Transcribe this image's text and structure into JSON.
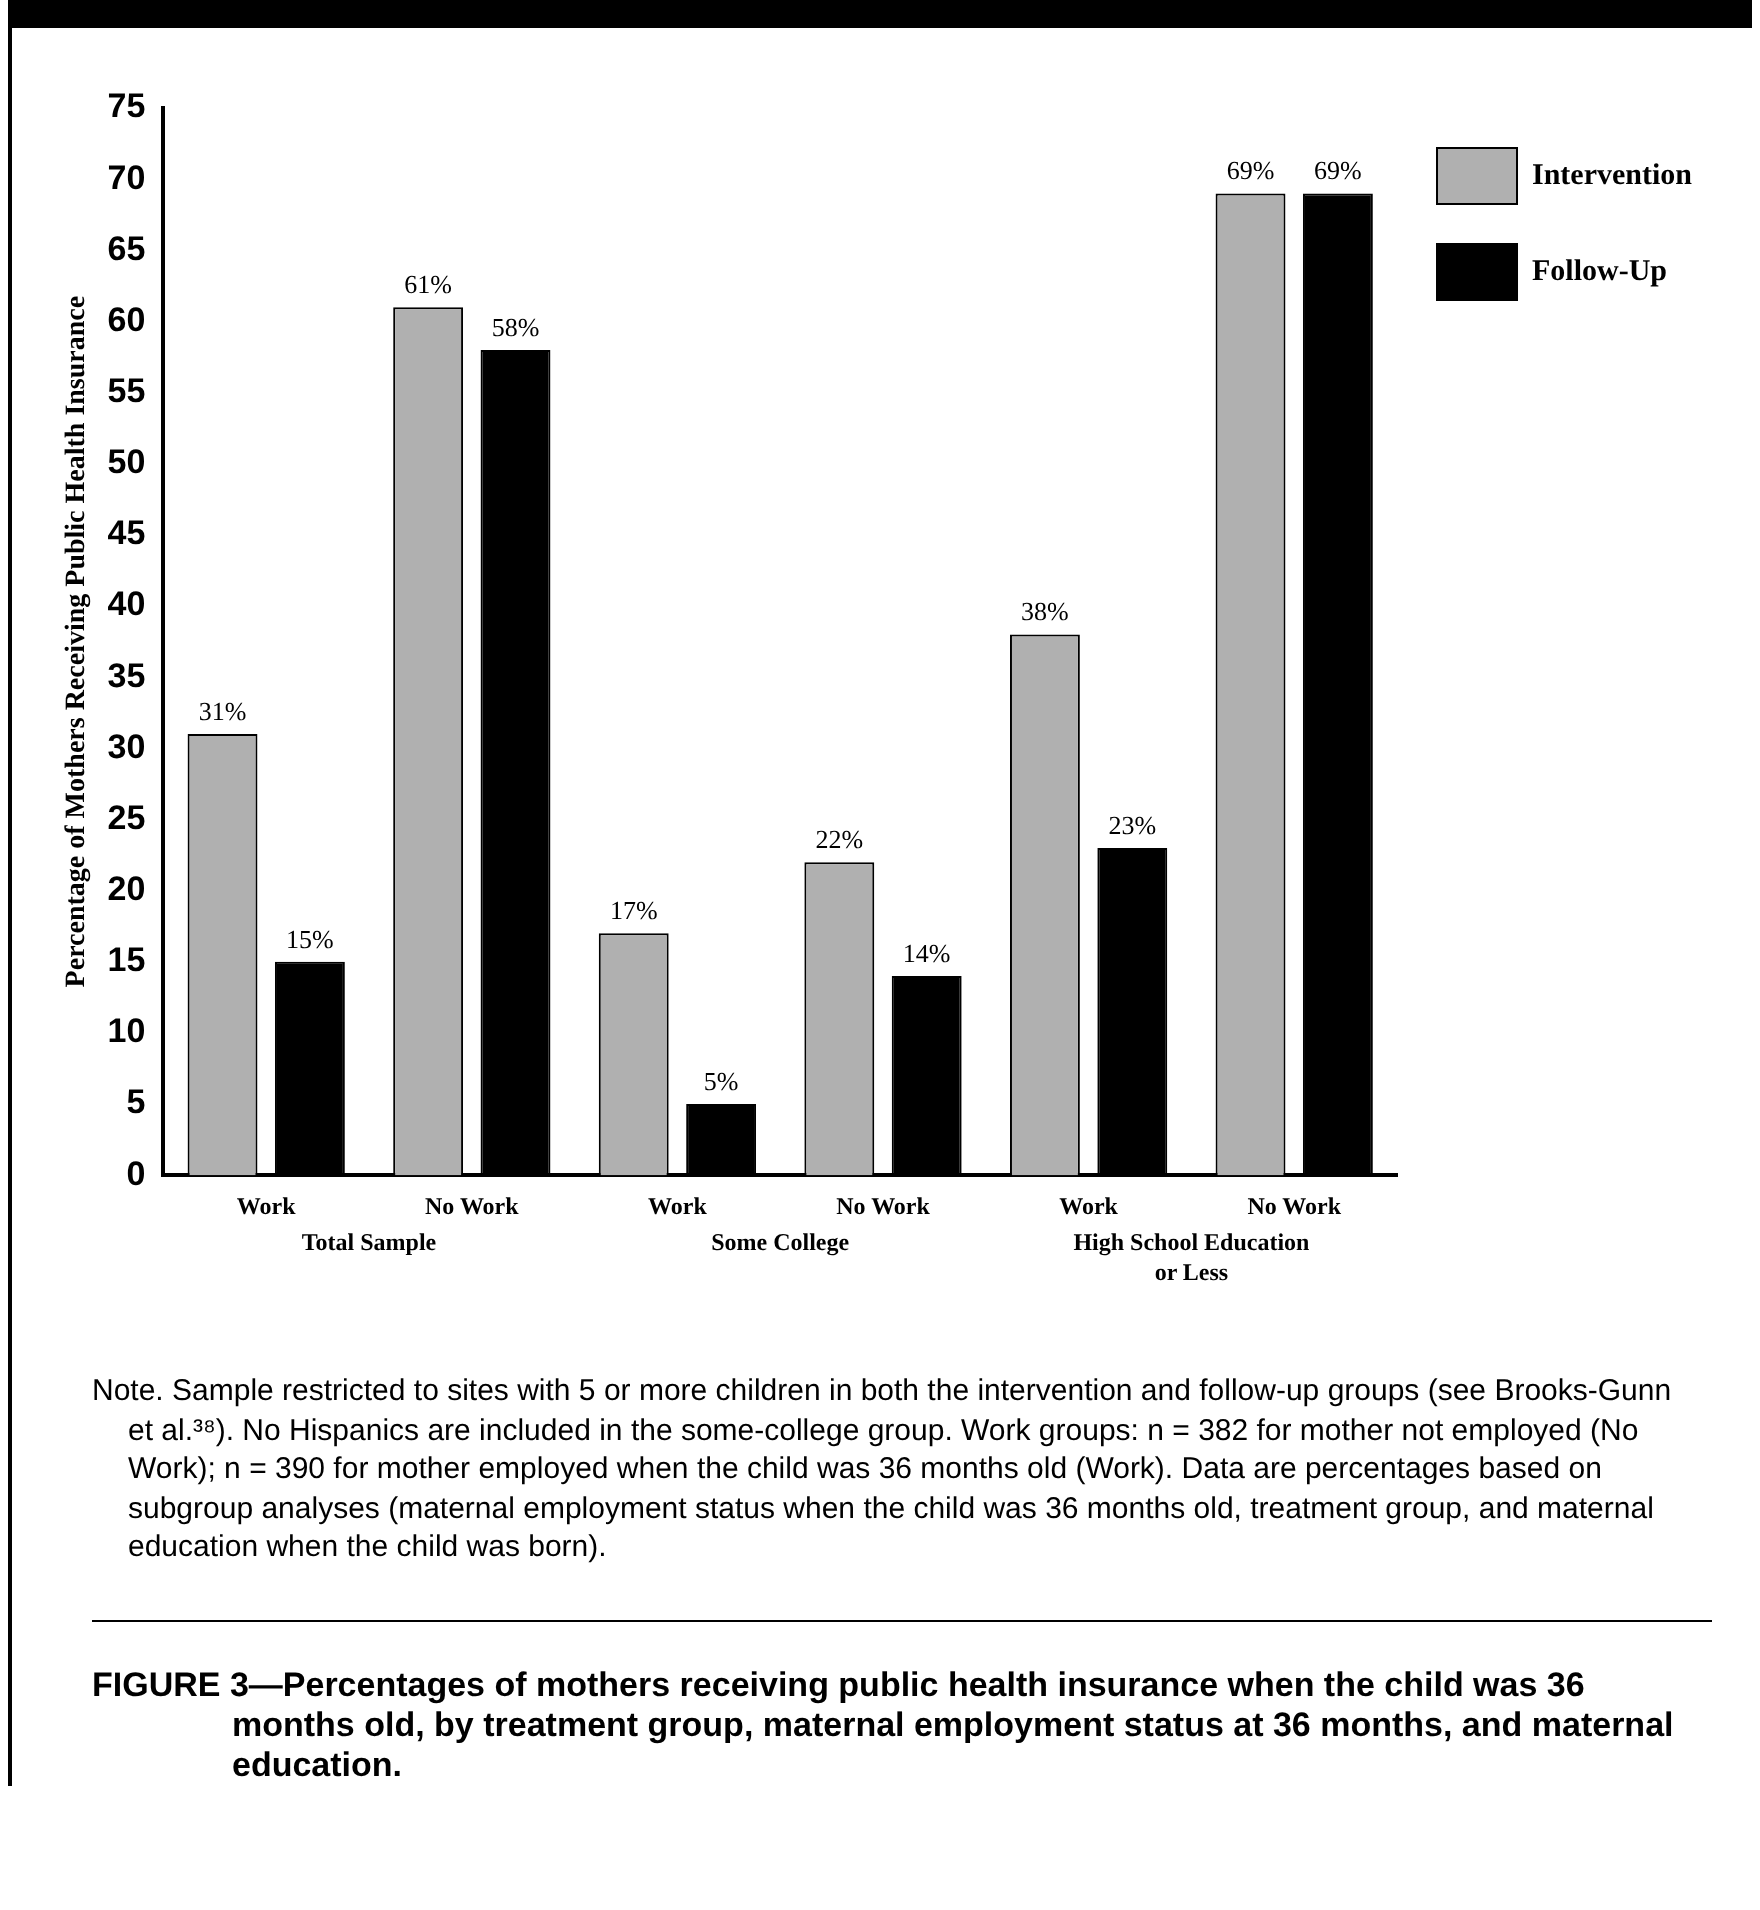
{
  "chart_data": {
    "type": "bar",
    "title": "FIGURE 3—Percentages of mothers receiving public health insurance when the child was 36 months old, by treatment group, maternal employment status at 36 months, and maternal education.",
    "ylabel": "Percentage of Mothers Receiving Public Health Insurance",
    "categories": [
      "Work",
      "No Work",
      "Work",
      "No Work",
      "Work",
      "No Work"
    ],
    "series": [
      {
        "name": "Intervention",
        "color": "#b0b0b0",
        "values": [
          31,
          61,
          17,
          22,
          38,
          69
        ],
        "value_labels": [
          "31%",
          "61%",
          "17%",
          "22%",
          "38%",
          "69%"
        ]
      },
      {
        "name": "Follow-Up",
        "color": "#000000",
        "values": [
          15,
          58,
          5,
          14,
          23,
          69
        ],
        "value_labels": [
          "15%",
          "58%",
          "5%",
          "14%",
          "23%",
          "69%"
        ]
      }
    ],
    "ylim": [
      0,
      75
    ],
    "yticks": [
      0,
      5,
      10,
      15,
      20,
      25,
      30,
      35,
      40,
      45,
      50,
      55,
      60,
      65,
      70,
      75
    ],
    "grid": false,
    "legend": "top right",
    "annotations": [
      "Total Sample",
      "Some College",
      "High School Education or Less",
      "Note. Sample restricted to sites with 5 or more children in both the intervention and follow-up groups (see Brooks-Gunn et al.³⁸). No Hispanics are included in the some-college group. Work groups: n = 382 for mother not employed (No Work); n = 390 for mother employed when the child was 36 months old (Work). Data are percentages based on subgroup analyses (maternal employment status when the child was 36 months old, treatment group, and maternal education when the child was born)."
    ]
  }
}
